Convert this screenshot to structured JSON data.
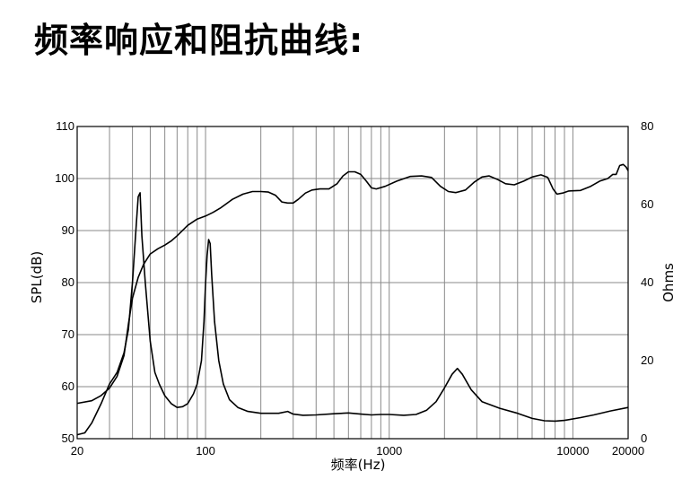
{
  "title": "频率响应和阻抗曲线:",
  "chart_data": {
    "type": "line",
    "title": "频率响应和阻抗曲线:",
    "xlabel": "频率(Hz)",
    "ylabel": "SPL(dB)",
    "y2label": "Ohms",
    "x_scale": "log",
    "xlim": [
      20,
      20000
    ],
    "ylim": [
      50,
      110
    ],
    "y2lim": [
      0,
      80
    ],
    "grid": true,
    "x_ticks": [
      {
        "value": 20,
        "label": "20"
      },
      {
        "value": 100,
        "label": "100"
      },
      {
        "value": 1000,
        "label": "1000"
      },
      {
        "value": 10000,
        "label": "10000"
      },
      {
        "value": 20000,
        "label": "20000"
      }
    ],
    "y_ticks": [
      {
        "value": 50,
        "label": "50"
      },
      {
        "value": 60,
        "label": "60"
      },
      {
        "value": 70,
        "label": "70"
      },
      {
        "value": 80,
        "label": "80"
      },
      {
        "value": 90,
        "label": "90"
      },
      {
        "value": 100,
        "label": "100"
      },
      {
        "value": 110,
        "label": "110"
      }
    ],
    "y2_ticks": [
      {
        "value": 0,
        "label": "0"
      },
      {
        "value": 20,
        "label": "20"
      },
      {
        "value": 40,
        "label": "40"
      },
      {
        "value": 60,
        "label": "60"
      },
      {
        "value": 80,
        "label": "80"
      }
    ],
    "series": [
      {
        "axis": "left",
        "points": [
          [
            20,
            56.8
          ],
          [
            24,
            57.3
          ],
          [
            27,
            58.3
          ],
          [
            30,
            59.7
          ],
          [
            33,
            62
          ],
          [
            36,
            66
          ],
          [
            38,
            72
          ],
          [
            40,
            77
          ],
          [
            43,
            81
          ],
          [
            46,
            83.5
          ],
          [
            50,
            85.5
          ],
          [
            55,
            86.5
          ],
          [
            60,
            87.2
          ],
          [
            65,
            88
          ],
          [
            70,
            89
          ],
          [
            80,
            91
          ],
          [
            90,
            92.2
          ],
          [
            100,
            92.8
          ],
          [
            110,
            93.5
          ],
          [
            120,
            94.3
          ],
          [
            140,
            96
          ],
          [
            160,
            97
          ],
          [
            180,
            97.5
          ],
          [
            200,
            97.5
          ],
          [
            220,
            97.4
          ],
          [
            240,
            96.8
          ],
          [
            260,
            95.5
          ],
          [
            280,
            95.3
          ],
          [
            300,
            95.3
          ],
          [
            320,
            96
          ],
          [
            350,
            97.2
          ],
          [
            380,
            97.8
          ],
          [
            420,
            98
          ],
          [
            470,
            98
          ],
          [
            520,
            99
          ],
          [
            560,
            100.5
          ],
          [
            600,
            101.3
          ],
          [
            650,
            101.3
          ],
          [
            700,
            100.8
          ],
          [
            750,
            99.5
          ],
          [
            800,
            98.2
          ],
          [
            850,
            98
          ],
          [
            950,
            98.5
          ],
          [
            1100,
            99.5
          ],
          [
            1300,
            100.4
          ],
          [
            1500,
            100.5
          ],
          [
            1700,
            100.2
          ],
          [
            1900,
            98.5
          ],
          [
            2100,
            97.5
          ],
          [
            2300,
            97.3
          ],
          [
            2600,
            97.8
          ],
          [
            2900,
            99.3
          ],
          [
            3200,
            100.3
          ],
          [
            3500,
            100.5
          ],
          [
            3900,
            99.8
          ],
          [
            4300,
            99
          ],
          [
            4800,
            98.8
          ],
          [
            5400,
            99.5
          ],
          [
            6000,
            100.3
          ],
          [
            6700,
            100.7
          ],
          [
            7300,
            100.2
          ],
          [
            7800,
            98
          ],
          [
            8200,
            97
          ],
          [
            8800,
            97.2
          ],
          [
            9500,
            97.6
          ],
          [
            11000,
            97.7
          ],
          [
            12500,
            98.5
          ],
          [
            14000,
            99.5
          ],
          [
            15500,
            100
          ],
          [
            16500,
            100.8
          ],
          [
            17200,
            100.8
          ],
          [
            18000,
            102.5
          ],
          [
            18800,
            102.7
          ],
          [
            19500,
            102.2
          ],
          [
            20000,
            101.5
          ]
        ]
      },
      {
        "axis": "right",
        "points": [
          [
            20,
            1
          ],
          [
            22,
            1.5
          ],
          [
            24,
            4
          ],
          [
            27,
            9
          ],
          [
            30,
            14
          ],
          [
            33,
            17
          ],
          [
            36,
            22
          ],
          [
            38,
            28
          ],
          [
            40,
            40
          ],
          [
            42,
            55
          ],
          [
            43,
            62
          ],
          [
            44,
            63
          ],
          [
            45,
            52
          ],
          [
            47,
            40
          ],
          [
            50,
            25
          ],
          [
            53,
            17
          ],
          [
            56,
            14
          ],
          [
            60,
            11
          ],
          [
            65,
            9
          ],
          [
            70,
            8
          ],
          [
            75,
            8.2
          ],
          [
            80,
            9
          ],
          [
            86,
            11.5
          ],
          [
            90,
            14
          ],
          [
            95,
            20
          ],
          [
            98,
            30
          ],
          [
            100,
            40
          ],
          [
            102,
            47
          ],
          [
            104,
            51
          ],
          [
            106,
            50
          ],
          [
            108,
            42
          ],
          [
            112,
            30
          ],
          [
            118,
            20
          ],
          [
            125,
            14
          ],
          [
            135,
            10
          ],
          [
            150,
            8
          ],
          [
            170,
            7
          ],
          [
            200,
            6.5
          ],
          [
            250,
            6.5
          ],
          [
            280,
            7
          ],
          [
            300,
            6.3
          ],
          [
            340,
            6
          ],
          [
            400,
            6.1
          ],
          [
            500,
            6.4
          ],
          [
            600,
            6.6
          ],
          [
            700,
            6.3
          ],
          [
            800,
            6.1
          ],
          [
            900,
            6.2
          ],
          [
            1000,
            6.2
          ],
          [
            1200,
            6
          ],
          [
            1400,
            6.2
          ],
          [
            1600,
            7.3
          ],
          [
            1800,
            9.5
          ],
          [
            2000,
            13
          ],
          [
            2200,
            16.5
          ],
          [
            2350,
            18
          ],
          [
            2500,
            16.5
          ],
          [
            2800,
            12.5
          ],
          [
            3200,
            9.5
          ],
          [
            4000,
            7.8
          ],
          [
            5000,
            6.5
          ],
          [
            6000,
            5.2
          ],
          [
            7000,
            4.6
          ],
          [
            8000,
            4.5
          ],
          [
            9000,
            4.7
          ],
          [
            11000,
            5.4
          ],
          [
            13000,
            6.1
          ],
          [
            16000,
            7.1
          ],
          [
            20000,
            8
          ]
        ]
      }
    ]
  }
}
